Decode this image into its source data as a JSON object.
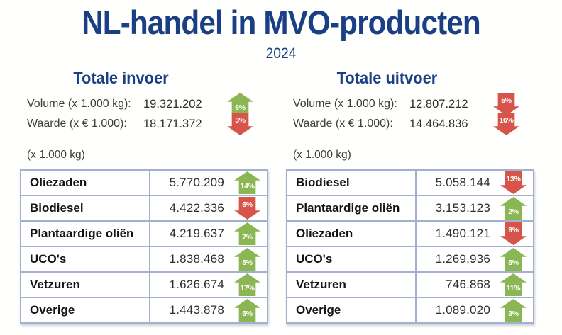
{
  "title": "NL-handel in MVO-producten",
  "subtitle": "2024",
  "colors": {
    "navy": "#1b3f85",
    "green": "#8ab654",
    "red": "#d6544a",
    "table_border": "#a2b1cf"
  },
  "sections": [
    {
      "heading": "Totale invoer",
      "stats": [
        {
          "label": "Volume (x 1.000 kg):",
          "value": "19.321.202",
          "change": "6%",
          "direction": "up"
        },
        {
          "label": "Waarde (x € 1.000):",
          "value": "18.171.372",
          "change": "3%",
          "direction": "down"
        }
      ],
      "unit_note": "(x 1.000 kg)",
      "table": {
        "rows": [
          {
            "name": "Oliezaden",
            "value": "5.770.209",
            "change": "14%",
            "direction": "up"
          },
          {
            "name": "Biodiesel",
            "value": "4.422.336",
            "change": "5%",
            "direction": "down"
          },
          {
            "name": "Plantaardige oliën",
            "value": "4.219.637",
            "change": "7%",
            "direction": "up"
          },
          {
            "name": "UCO's",
            "value": "1.838.468",
            "change": "5%",
            "direction": "up"
          },
          {
            "name": "Vetzuren",
            "value": "1.626.674",
            "change": "17%",
            "direction": "up"
          },
          {
            "name": "Overige",
            "value": "1.443.878",
            "change": "5%",
            "direction": "up"
          }
        ]
      }
    },
    {
      "heading": "Totale uitvoer",
      "stats": [
        {
          "label": "Volume (x 1.000 kg):",
          "value": "12.807.212",
          "change": "5%",
          "direction": "down"
        },
        {
          "label": "Waarde (x € 1.000):",
          "value": "14.464.836",
          "change": "16%",
          "direction": "down"
        }
      ],
      "unit_note": "(x 1.000 kg)",
      "table": {
        "rows": [
          {
            "name": "Biodiesel",
            "value": "5.058.144",
            "change": "13%",
            "direction": "down"
          },
          {
            "name": "Plantaardige oliën",
            "value": "3.153.123",
            "change": "2%",
            "direction": "up"
          },
          {
            "name": "Oliezaden",
            "value": "1.490.121",
            "change": "9%",
            "direction": "down"
          },
          {
            "name": "UCO's",
            "value": "1.269.936",
            "change": "5%",
            "direction": "up"
          },
          {
            "name": "Vetzuren",
            "value": "746.868",
            "change": "11%",
            "direction": "up"
          },
          {
            "name": "Overige",
            "value": "1.089.020",
            "change": "3%",
            "direction": "up"
          }
        ]
      }
    }
  ],
  "chart_data": [
    {
      "type": "table",
      "title": "Totale invoer 2024",
      "unit": "x 1.000 kg",
      "totals": {
        "volume_x1000kg": 19321202,
        "volume_change_pct": 6,
        "waarde_x1000eur": 18171372,
        "waarde_change_pct": -3
      },
      "categories": [
        "Oliezaden",
        "Biodiesel",
        "Plantaardige oliën",
        "UCO's",
        "Vetzuren",
        "Overige"
      ],
      "values": [
        5770209,
        4422336,
        4219637,
        1838468,
        1626674,
        1443878
      ],
      "change_pct": [
        14,
        -5,
        7,
        5,
        17,
        5
      ]
    },
    {
      "type": "table",
      "title": "Totale uitvoer 2024",
      "unit": "x 1.000 kg",
      "totals": {
        "volume_x1000kg": 12807212,
        "volume_change_pct": -5,
        "waarde_x1000eur": 14464836,
        "waarde_change_pct": -16
      },
      "categories": [
        "Biodiesel",
        "Plantaardige oliën",
        "Oliezaden",
        "UCO's",
        "Vetzuren",
        "Overige"
      ],
      "values": [
        5058144,
        3153123,
        1490121,
        1269936,
        746868,
        1089020
      ],
      "change_pct": [
        -13,
        2,
        -9,
        5,
        11,
        3
      ]
    }
  ]
}
